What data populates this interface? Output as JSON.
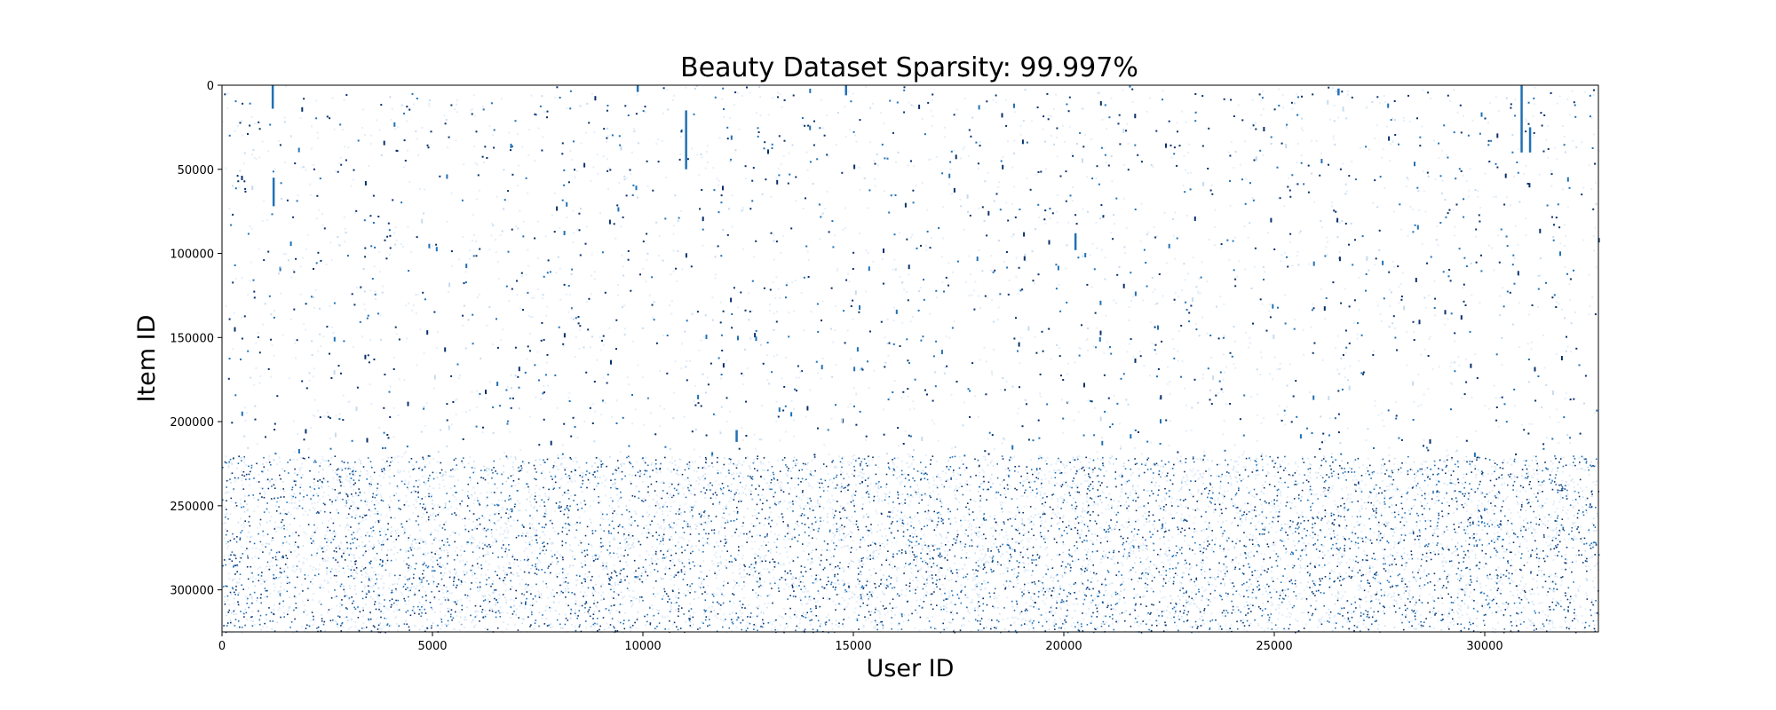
{
  "chart_data": {
    "type": "heatmap",
    "title": "Beauty Dataset Sparsity: 99.997%",
    "xlabel": "User ID",
    "ylabel": "Item ID",
    "xlim": [
      0,
      32700
    ],
    "ylim": [
      325000,
      0
    ],
    "y_inverted": true,
    "x_ticks": [
      0,
      5000,
      10000,
      15000,
      20000,
      25000,
      30000
    ],
    "y_ticks": [
      0,
      50000,
      100000,
      150000,
      200000,
      250000,
      300000
    ],
    "x_tick_labels": [
      "0",
      "5000",
      "10000",
      "15000",
      "20000",
      "25000",
      "30000"
    ],
    "y_tick_labels": [
      "0",
      "50000",
      "100000",
      "150000",
      "200000",
      "250000",
      "300000"
    ],
    "grid": false,
    "cmap": "Blues",
    "dense_region_start_item": 220000,
    "colors": {
      "dark": "#08306b",
      "mid": "#2171b5",
      "light": "#c6dbef",
      "faint": "#e4eef8",
      "axis": "#000000"
    }
  }
}
